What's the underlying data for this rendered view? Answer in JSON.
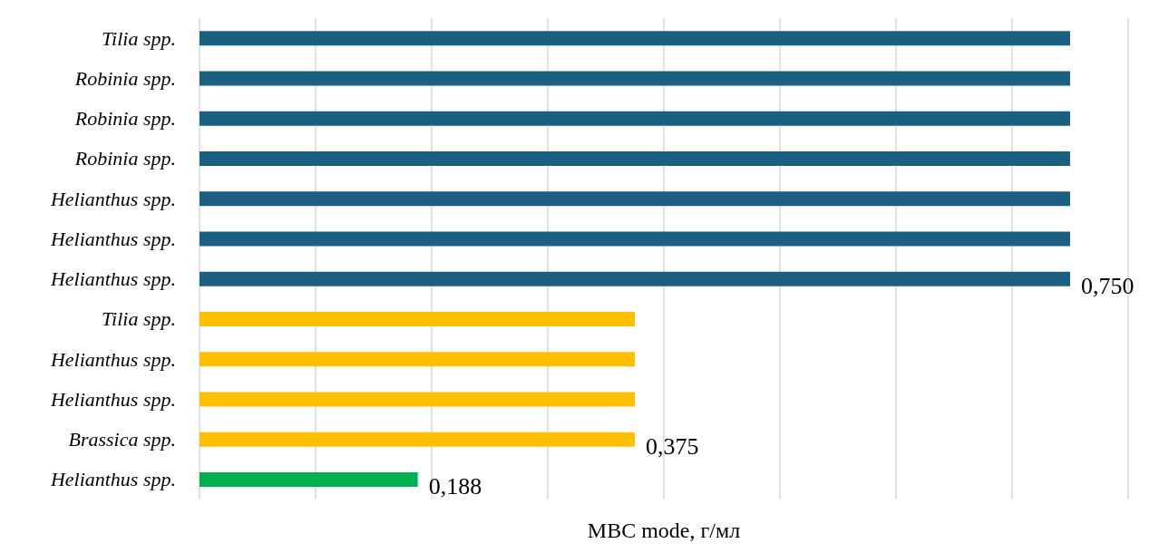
{
  "chart_data": {
    "type": "bar",
    "orientation": "horizontal",
    "xlabel": "MBC mode, г/мл",
    "categories": [
      "Tilia spp.",
      "Robinia spp.",
      "Robinia spp.",
      "Robinia spp.",
      "Helianthus spp.",
      "Helianthus spp.",
      "Helianthus spp.",
      "Tilia spp.",
      "Helianthus spp.",
      "Helianthus spp.",
      "Brassica spp.",
      "Helianthus spp."
    ],
    "values": [
      0.75,
      0.75,
      0.75,
      0.75,
      0.75,
      0.75,
      0.75,
      0.375,
      0.375,
      0.375,
      0.375,
      0.188
    ],
    "value_labels": [
      null,
      null,
      null,
      null,
      null,
      null,
      "0,750",
      null,
      null,
      null,
      "0,375",
      "0,188"
    ],
    "colors": [
      "#1b5f82",
      "#1b5f82",
      "#1b5f82",
      "#1b5f82",
      "#1b5f82",
      "#1b5f82",
      "#1b5f82",
      "#ffc000",
      "#ffc000",
      "#ffc000",
      "#ffc000",
      "#00b050"
    ],
    "xlim": [
      0,
      0.8
    ],
    "xticks": [
      {
        "value": 0,
        "label": null
      },
      {
        "value": 0.1,
        "label": null
      },
      {
        "value": 0.2,
        "label": null
      },
      {
        "value": 0.3,
        "label": null
      },
      {
        "value": 0.4,
        "label": null
      },
      {
        "value": 0.5,
        "label": null
      },
      {
        "value": 0.6,
        "label": null
      },
      {
        "value": 0.7,
        "label": null
      },
      {
        "value": 0.8,
        "label": null
      }
    ],
    "grid": "x",
    "tick_labels": "y"
  }
}
